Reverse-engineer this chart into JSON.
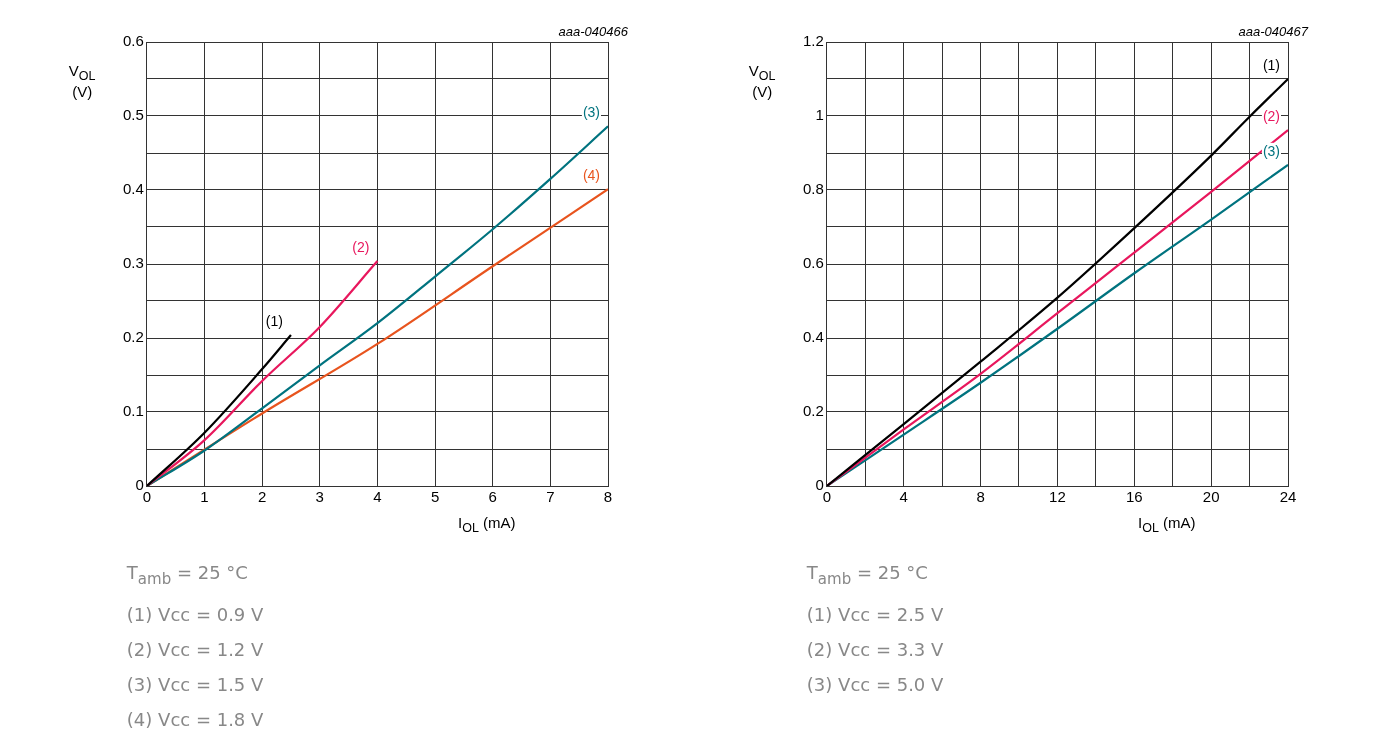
{
  "chart_data": [
    {
      "type": "line",
      "xlabel": "I$_{OL}$ (mA)",
      "ylabel": "V$_{OL}$\n(V)",
      "xlim": [
        0,
        8
      ],
      "ylim": [
        0,
        0.6
      ],
      "xticks": [
        0,
        1,
        2,
        3,
        4,
        5,
        6,
        7,
        8
      ],
      "yticks": [
        0,
        {
          "value": 0.05,
          "label": null
        },
        0.1,
        {
          "value": 0.15,
          "label": null
        },
        0.2,
        {
          "value": 0.25,
          "label": null
        },
        0.3,
        {
          "value": 0.35,
          "label": null
        },
        0.4,
        {
          "value": 0.45,
          "label": null
        },
        0.5,
        {
          "value": 0.55,
          "label": null
        },
        0.6
      ],
      "grid": true,
      "legend": false,
      "marker": "none",
      "line_style": "solid",
      "series": [
        {
          "name": "(1)",
          "color": "#000000",
          "x": [
            0,
            1,
            2,
            2.5
          ],
          "values": [
            0,
            0.072,
            0.158,
            0.204
          ]
        },
        {
          "name": "(2)",
          "color": "#e8175d",
          "x": [
            0,
            1,
            2,
            3,
            4
          ],
          "values": [
            0,
            0.062,
            0.142,
            0.215,
            0.304
          ]
        },
        {
          "name": "(3)",
          "color": "#00737f",
          "x": [
            0,
            1,
            2,
            3,
            4,
            5,
            6,
            7,
            8
          ],
          "values": [
            0,
            0.048,
            0.105,
            0.163,
            0.22,
            0.283,
            0.347,
            0.415,
            0.486
          ]
        },
        {
          "name": "(4)",
          "color": "#e8541e",
          "x": [
            0,
            2,
            4,
            6,
            8
          ],
          "values": [
            0,
            0.098,
            0.192,
            0.297,
            0.401
          ]
        }
      ],
      "annotations": [
        "aaa-040466",
        "T$_{amb}$ = 25 °C",
        "(1) Vcc = 0.9 V",
        "(2) Vcc = 1.2 V",
        "(3) Vcc = 1.5 V",
        "(4) Vcc = 1.8 V"
      ]
    },
    {
      "type": "line",
      "xlabel": "I$_{OL}$ (mA)",
      "ylabel": "V$_{OL}$\n(V)",
      "xlim": [
        0,
        24
      ],
      "ylim": [
        0,
        1.2
      ],
      "xticks": [
        0,
        {
          "value": 2,
          "label": null
        },
        4,
        {
          "value": 6,
          "label": null
        },
        8,
        {
          "value": 10,
          "label": null
        },
        12,
        {
          "value": 14,
          "label": null
        },
        16,
        {
          "value": 18,
          "label": null
        },
        20,
        {
          "value": 22,
          "label": null
        },
        24
      ],
      "yticks": [
        0,
        {
          "value": 0.1,
          "label": null
        },
        0.2,
        {
          "value": 0.3,
          "label": null
        },
        0.4,
        {
          "value": 0.5,
          "label": null
        },
        0.6,
        {
          "value": 0.7,
          "label": null
        },
        0.8,
        {
          "value": 0.9,
          "label": null
        },
        1,
        {
          "value": 1.1,
          "label": null
        },
        1.2
      ],
      "grid": true,
      "legend": false,
      "marker": "none",
      "line_style": "solid",
      "series": [
        {
          "name": "(1)",
          "color": "#000000",
          "x": [
            0,
            4,
            8,
            12,
            16,
            20,
            22,
            24
          ],
          "values": [
            0,
            0.167,
            0.336,
            0.509,
            0.697,
            0.893,
            0.998,
            1.1
          ]
        },
        {
          "name": "(2)",
          "color": "#e8175d",
          "x": [
            0,
            4,
            8,
            12,
            16,
            20,
            24
          ],
          "values": [
            0,
            0.153,
            0.303,
            0.467,
            0.631,
            0.795,
            0.962
          ]
        },
        {
          "name": "(3)",
          "color": "#00737f",
          "x": [
            0,
            4,
            8,
            12,
            16,
            20,
            24
          ],
          "values": [
            0,
            0.139,
            0.279,
            0.425,
            0.575,
            0.72,
            0.868
          ]
        }
      ],
      "annotations": [
        "aaa-040467",
        "T$_{amb}$ = 25 °C",
        "(1) Vcc = 2.5 V",
        "(2) Vcc = 3.3 V",
        "(3) Vcc = 5.0 V"
      ]
    }
  ]
}
